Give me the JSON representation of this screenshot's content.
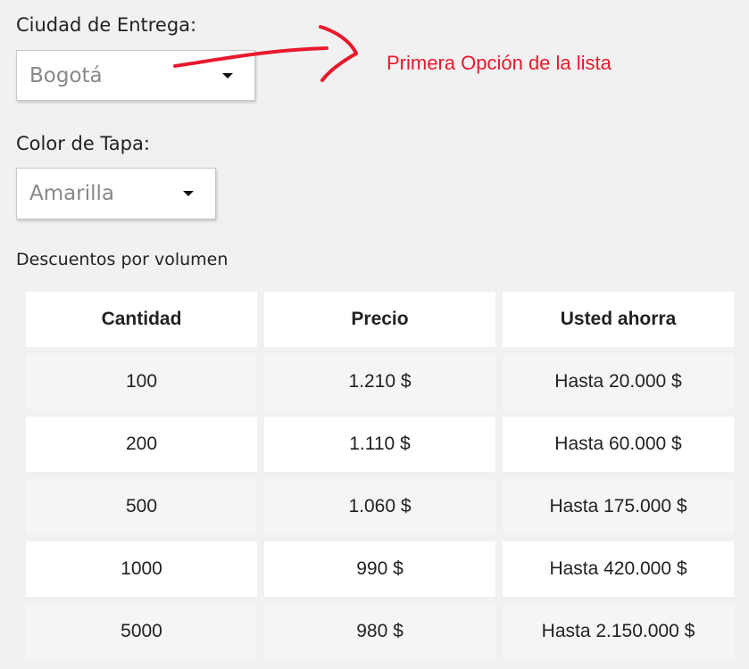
{
  "form": {
    "city_label": "Ciudad de Entrega:",
    "city_value": "Bogotá",
    "cap_label": "Color de Tapa:",
    "cap_value": "Amarilla"
  },
  "annotation": {
    "text": "Primera Opción de la lista",
    "color": "#e8192c"
  },
  "discounts": {
    "caption": "Descuentos por volumen",
    "headers": [
      "Cantidad",
      "Precio",
      "Usted ahorra"
    ],
    "rows": [
      [
        "100",
        "1.210 $",
        "Hasta 20.000 $"
      ],
      [
        "200",
        "1.110 $",
        "Hasta 60.000 $"
      ],
      [
        "500",
        "1.060 $",
        "Hasta 175.000 $"
      ],
      [
        "1000",
        "990 $",
        "Hasta 420.000 $"
      ],
      [
        "5000",
        "980 $",
        "Hasta 2.150.000 $"
      ]
    ]
  }
}
